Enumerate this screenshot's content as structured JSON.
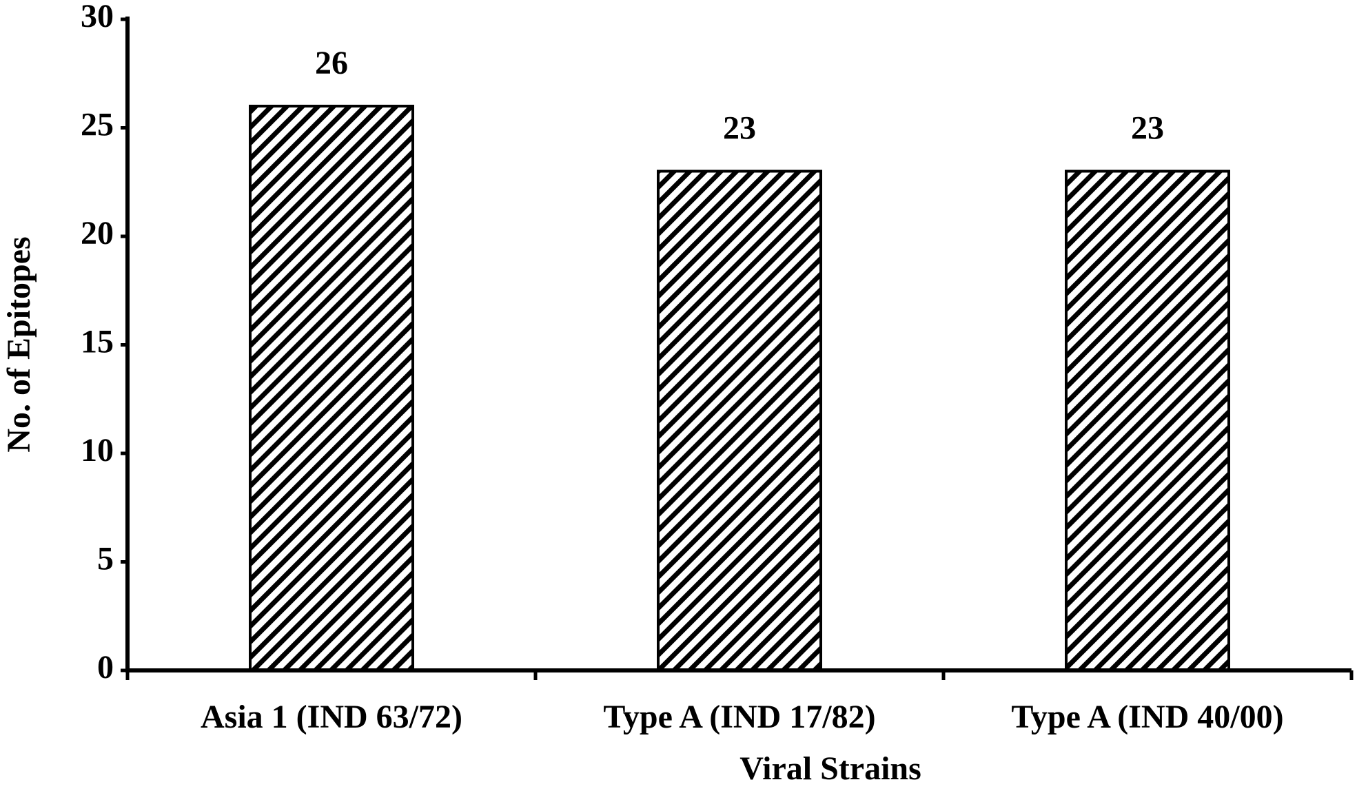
{
  "chart_data": {
    "type": "bar",
    "x_label": "Viral Strains",
    "y_label": "No. of Epitopes",
    "categories": [
      "Asia 1 (IND 63/72)",
      "Type A (IND 17/82)",
      "Type A (IND 40/00)"
    ],
    "values": [
      26,
      23,
      23
    ],
    "color": "#000000",
    "ylim": [
      0,
      30
    ],
    "yticks": [
      0,
      5,
      10,
      15,
      20,
      25,
      30
    ],
    "grid": false
  }
}
